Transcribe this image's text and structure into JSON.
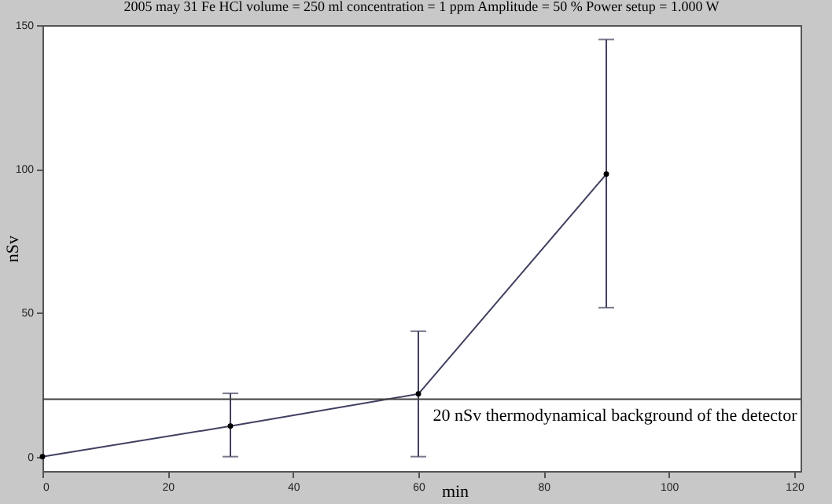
{
  "chart_data": {
    "type": "line",
    "title": "2005 may 31  Fe HCl volume = 250 ml concentration = 1 ppm  Amplitude = 50 %  Power setup = 1.000 W",
    "xlabel": "min",
    "ylabel": "nSv",
    "x": [
      0,
      30,
      60,
      90
    ],
    "series": [
      {
        "color": "#404060",
        "values": [
          0,
          10.6,
          21.8,
          98.2
        ],
        "errors": [
          null,
          [
            0,
            22
          ],
          [
            0,
            43.6
          ],
          [
            51.8,
            145
          ]
        ]
      }
    ],
    "xlim": [
      0,
      121
    ],
    "xticks": [
      0,
      20,
      40,
      60,
      80,
      100,
      120
    ],
    "ylim": [
      -5,
      150
    ],
    "yticks": [
      0,
      50,
      100,
      150
    ],
    "ref_lines": [
      {
        "axis": "y",
        "value": 20,
        "label": "20 nSv thermodynamical background of the detector",
        "color": "#404040"
      }
    ],
    "marker": "circle"
  }
}
